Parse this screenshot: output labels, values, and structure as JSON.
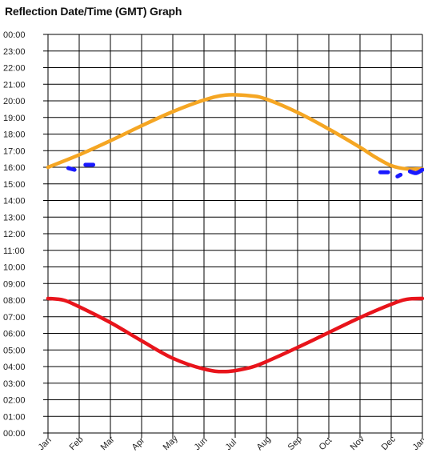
{
  "chart_data": {
    "type": "line",
    "title": "Reflection Date/Time (GMT) Graph",
    "xlabel": "",
    "ylabel": "",
    "x_ticks": [
      "Jan",
      "Feb",
      "Mar",
      "Apr",
      "May",
      "Jun",
      "Jul",
      "Aug",
      "Sep",
      "Oct",
      "Nov",
      "Dec",
      "Jan"
    ],
    "y_ticks": [
      "00:00",
      "01:00",
      "02:00",
      "03:00",
      "04:00",
      "05:00",
      "06:00",
      "07:00",
      "08:00",
      "09:00",
      "10:00",
      "11:00",
      "12:00",
      "13:00",
      "14:00",
      "15:00",
      "16:00",
      "17:00",
      "18:00",
      "19:00",
      "20:00",
      "21:00",
      "22:00",
      "23:00",
      "00:00"
    ],
    "ylim": [
      0,
      24
    ],
    "xlim": [
      0,
      12
    ],
    "grid": true,
    "colors": {
      "orange": "#f5a623",
      "red": "#e8141b",
      "blue": "#1a1aff",
      "grid": "#000000"
    },
    "series": [
      {
        "color": "orange",
        "x": [
          0,
          1,
          2,
          3,
          4,
          5,
          5.7,
          6.5,
          7,
          8,
          9,
          10,
          10.5,
          11,
          11.5,
          12
        ],
        "y": [
          16.0,
          16.75,
          17.6,
          18.5,
          19.35,
          20.05,
          20.35,
          20.3,
          20.1,
          19.3,
          18.3,
          17.2,
          16.6,
          16.1,
          15.9,
          15.9
        ]
      },
      {
        "color": "red",
        "x": [
          0,
          0.5,
          1,
          2,
          3,
          4,
          5,
          5.7,
          6.5,
          7,
          8,
          9,
          10,
          11,
          11.5,
          12
        ],
        "y": [
          8.1,
          8.0,
          7.6,
          6.65,
          5.55,
          4.5,
          3.85,
          3.7,
          3.95,
          4.3,
          5.15,
          6.05,
          6.95,
          7.75,
          8.05,
          8.1
        ]
      }
    ],
    "marks": [
      {
        "color": "blue",
        "x": [
          0.65,
          0.85
        ],
        "y": [
          15.95,
          15.85
        ]
      },
      {
        "color": "blue",
        "x": [
          1.2,
          1.45
        ],
        "y": [
          16.15,
          16.15
        ]
      },
      {
        "color": "blue",
        "x": [
          10.65,
          10.9
        ],
        "y": [
          15.7,
          15.7
        ]
      },
      {
        "color": "blue",
        "x": [
          11.2,
          11.3
        ],
        "y": [
          15.45,
          15.55
        ]
      },
      {
        "color": "blue",
        "x": [
          11.6,
          11.8,
          12.0
        ],
        "y": [
          15.75,
          15.65,
          15.85
        ]
      }
    ]
  }
}
